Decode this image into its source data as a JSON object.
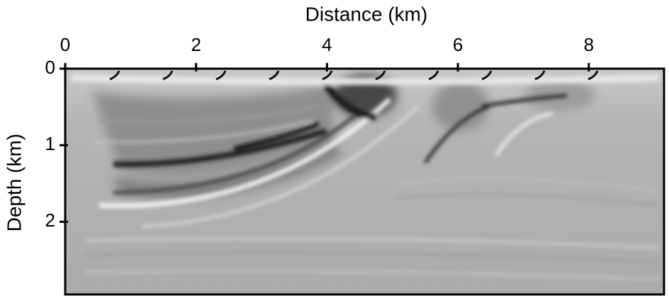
{
  "chart_data": {
    "type": "image",
    "xlabel": "Distance (km)",
    "ylabel": "Depth (km)",
    "xlim": [
      0,
      9.15
    ],
    "xticks": [
      0,
      2,
      4,
      6,
      8
    ],
    "ylim": [
      0,
      2.95
    ],
    "yticks": [
      0,
      1,
      2
    ],
    "colormap": "gray"
  }
}
